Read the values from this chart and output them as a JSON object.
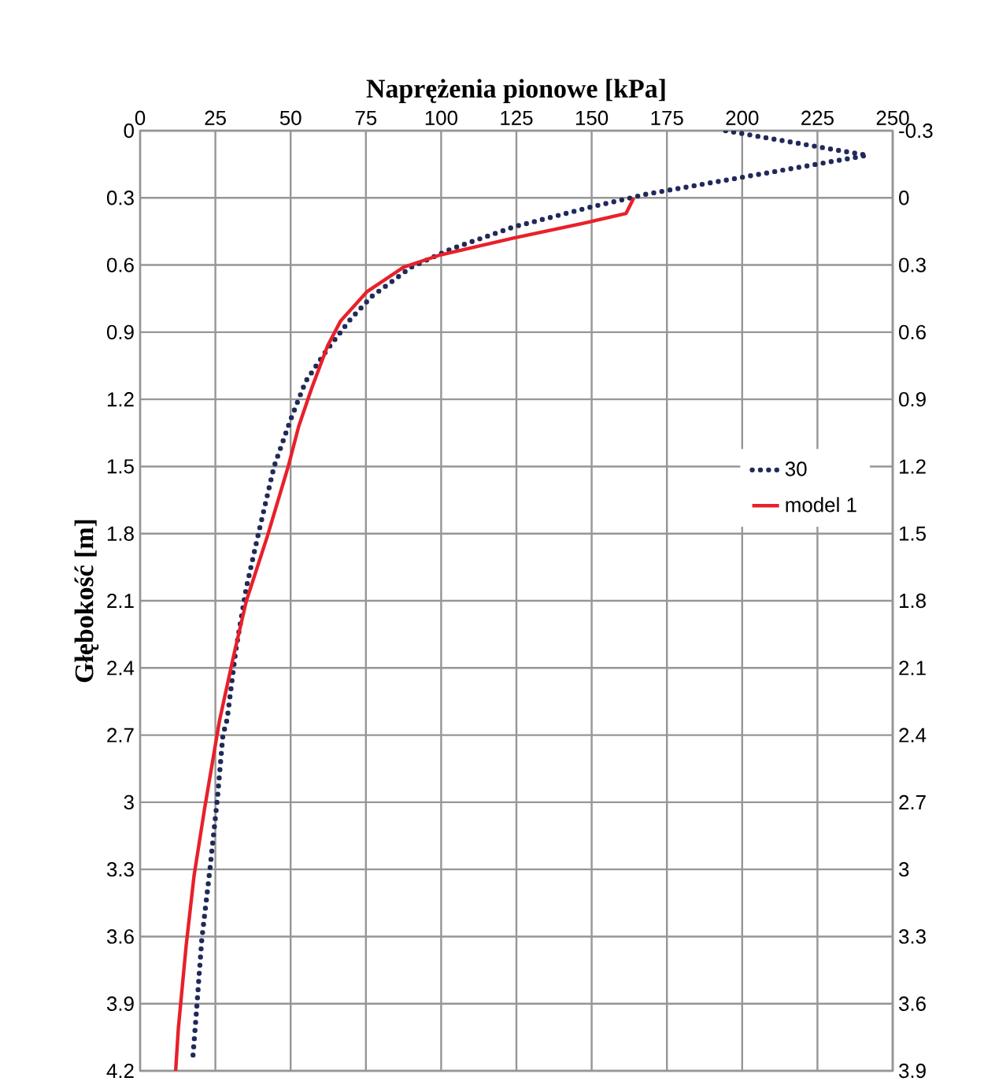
{
  "chart_data": {
    "type": "line",
    "xlabel": "Naprężenia pionowe [kPa]",
    "ylabel": "Głębokość [m]",
    "xlim": [
      0,
      250
    ],
    "xticks": [
      0,
      25,
      50,
      75,
      100,
      125,
      150,
      175,
      200,
      225,
      250
    ],
    "ylim": [
      4.2,
      0
    ],
    "yticks": [
      0,
      0.3,
      0.6,
      0.9,
      1.2,
      1.5,
      1.8,
      2.1,
      2.4,
      2.7,
      3,
      3.3,
      3.6,
      3.9,
      4.2
    ],
    "y2lim": [
      3.9,
      -0.3
    ],
    "y2ticks": [
      -0.3,
      0,
      0.3,
      0.6,
      0.9,
      1.2,
      1.5,
      1.8,
      2.1,
      2.4,
      2.7,
      3,
      3.3,
      3.6,
      3.9
    ],
    "grid": true,
    "legend": "right",
    "marker": "none",
    "series": [
      {
        "name": "30",
        "color": "#1f2a5a",
        "line_style": "dotted",
        "x": [
          194.5,
          241.5,
          167.5,
          163,
          150,
          124,
          103,
          90,
          77,
          70,
          62,
          55,
          50,
          44.5,
          39.3,
          35.3,
          31.8,
          28.9,
          27.5,
          25.7,
          23.1,
          20.5,
          18.8,
          17.4
        ],
        "values": [
          0,
          0.11,
          0.285,
          0.3,
          0.34,
          0.43,
          0.53,
          0.61,
          0.74,
          0.84,
          0.98,
          1.12,
          1.29,
          1.5,
          1.8,
          2.04,
          2.32,
          2.63,
          2.7,
          2.98,
          3.31,
          3.61,
          3.92,
          4.16
        ]
      },
      {
        "name": "model 1",
        "color": "#e8202a",
        "line_style": "solid",
        "x": [
          164,
          161.4,
          148.4,
          124,
          99.7,
          87.5,
          75.3,
          66.6,
          62.3,
          57,
          52.7,
          49.2,
          42.3,
          35.3,
          31,
          26.3,
          21.4,
          17.9,
          15.3,
          12.7,
          11.8
        ],
        "values": [
          0.3,
          0.37,
          0.41,
          0.48,
          0.555,
          0.61,
          0.72,
          0.85,
          0.96,
          1.15,
          1.32,
          1.5,
          1.81,
          2.1,
          2.35,
          2.64,
          3.03,
          3.33,
          3.64,
          4.01,
          4.2
        ]
      }
    ]
  }
}
